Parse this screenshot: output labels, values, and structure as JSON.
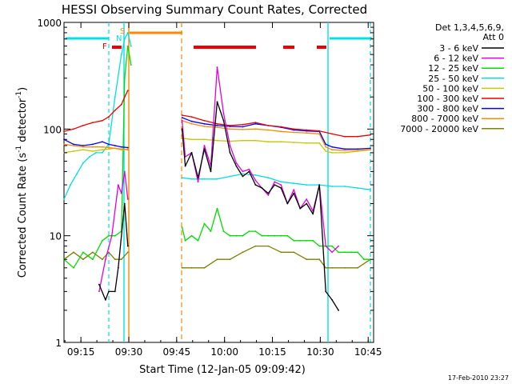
{
  "chart_data": {
    "type": "line",
    "title": "HESSI Observing Summary Count Rates, Corrected",
    "xlabel": "Start Time (12-Jan-05 09:09:42)",
    "ylabel_main": "Corrected Count Rate (s",
    "ylabel_sup1": "-1",
    "ylabel_mid": " detector",
    "ylabel_sup2": "-1",
    "ylabel_end": ")",
    "x_unit": "minutes after 09:09:42",
    "xlim": [
      0,
      97
    ],
    "ylim": [
      1,
      1000
    ],
    "yscale": "log",
    "x_ticks": [
      {
        "label": "09:15",
        "x": 5.3
      },
      {
        "label": "09:30",
        "x": 20.3
      },
      {
        "label": "09:45",
        "x": 35.3
      },
      {
        "label": "10:00",
        "x": 50.3
      },
      {
        "label": "10:15",
        "x": 65.3
      },
      {
        "label": "10:30",
        "x": 80.3
      },
      {
        "label": "10:45",
        "x": 95.3
      }
    ],
    "y_ticks": [
      {
        "label": "1",
        "y": 1
      },
      {
        "label": "10",
        "y": 10
      },
      {
        "label": "100",
        "y": 100
      },
      {
        "label": "1000",
        "y": 1000
      }
    ],
    "legend": {
      "header": [
        "Det 1,3,4,5,6,9,",
        "Att 0"
      ],
      "position": "right"
    },
    "series": [
      {
        "name": "3 - 6 keV",
        "color": "#000000",
        "x": [
          11,
          13,
          14,
          16,
          17,
          19,
          20,
          37,
          38,
          40,
          42,
          44,
          46,
          48,
          50,
          52,
          54,
          56,
          58,
          60,
          62,
          64,
          66,
          68,
          70,
          72,
          74,
          76,
          78,
          80,
          82,
          84,
          86
        ],
        "y": [
          3.5,
          2.5,
          3,
          3,
          5,
          20,
          8,
          100,
          45,
          60,
          35,
          65,
          40,
          180,
          120,
          60,
          45,
          36,
          40,
          30,
          28,
          25,
          30,
          28,
          20,
          25,
          18,
          20,
          16,
          30,
          3,
          2.5,
          2
        ]
      },
      {
        "name": "6 - 12 keV",
        "color": "#e000e0",
        "x": [
          11,
          13,
          15,
          17,
          18,
          19,
          20,
          37,
          38,
          40,
          42,
          44,
          46,
          48,
          50,
          52,
          54,
          56,
          58,
          60,
          62,
          64,
          66,
          68,
          70,
          72,
          74,
          76,
          78,
          80,
          82,
          84,
          86
        ],
        "y": [
          3,
          6,
          10,
          30,
          25,
          40,
          22,
          120,
          55,
          60,
          32,
          70,
          45,
          380,
          140,
          70,
          48,
          40,
          42,
          33,
          28,
          24,
          32,
          30,
          20,
          27,
          18,
          22,
          17,
          30,
          8,
          7,
          8
        ]
      },
      {
        "name": "12 - 25 keV",
        "color": "#00dd00",
        "x": [
          0,
          3,
          6,
          9,
          12,
          14,
          16,
          18,
          19,
          20,
          21,
          37,
          38,
          40,
          42,
          44,
          46,
          48,
          50,
          52,
          54,
          56,
          58,
          60,
          62,
          64,
          66,
          68,
          70,
          72,
          74,
          76,
          78,
          80,
          82,
          84,
          86,
          88,
          90,
          92,
          94,
          96
        ],
        "y": [
          6,
          5,
          7,
          6,
          9,
          10,
          10,
          11,
          300,
          600,
          400,
          12,
          9,
          10,
          9,
          13,
          11,
          18,
          11,
          10,
          10,
          10,
          11,
          11,
          10,
          10,
          10,
          10,
          10,
          9,
          9,
          9,
          9,
          8,
          8,
          8,
          7,
          7,
          7,
          7,
          6,
          6
        ]
      },
      {
        "name": "25 - 50 keV",
        "color": "#00e0e0",
        "x": [
          0,
          2,
          4,
          6,
          8,
          10,
          12,
          14,
          16,
          18,
          19,
          20,
          21,
          37,
          40,
          44,
          48,
          52,
          56,
          60,
          64,
          68,
          72,
          76,
          80,
          84,
          88,
          92,
          96
        ],
        "y": [
          22,
          30,
          38,
          48,
          55,
          60,
          60,
          72,
          200,
          500,
          700,
          800,
          600,
          35,
          34,
          34,
          34,
          36,
          38,
          37,
          35,
          32,
          31,
          30,
          30,
          29,
          29,
          28,
          27
        ]
      },
      {
        "name": "50 - 100 keV",
        "color": "#c8c800",
        "x": [
          0,
          3,
          6,
          9,
          12,
          14,
          16,
          18,
          20,
          37,
          40,
          44,
          48,
          52,
          56,
          60,
          64,
          68,
          72,
          76,
          80,
          82,
          84,
          88,
          92,
          96
        ],
        "y": [
          60,
          62,
          64,
          62,
          64,
          65,
          66,
          64,
          65,
          82,
          80,
          80,
          78,
          77,
          78,
          78,
          76,
          76,
          75,
          74,
          74,
          62,
          60,
          60,
          62,
          64
        ]
      },
      {
        "name": "100 - 300 keV",
        "color": "#ee0000",
        "x": [
          0,
          3,
          6,
          9,
          12,
          14,
          16,
          18,
          19,
          20,
          37,
          40,
          44,
          48,
          52,
          56,
          60,
          64,
          68,
          72,
          76,
          80,
          84,
          88,
          92,
          96
        ],
        "y": [
          95,
          100,
          108,
          115,
          120,
          130,
          150,
          170,
          200,
          230,
          135,
          130,
          120,
          112,
          108,
          110,
          115,
          108,
          105,
          100,
          98,
          96,
          90,
          85,
          85,
          88
        ]
      },
      {
        "name": "300 - 800 keV",
        "color": "#0000ff",
        "x": [
          0,
          3,
          6,
          9,
          12,
          14,
          16,
          18,
          20,
          37,
          40,
          44,
          48,
          52,
          56,
          60,
          64,
          68,
          72,
          76,
          80,
          82,
          84,
          88,
          92,
          96
        ],
        "y": [
          80,
          72,
          70,
          72,
          76,
          72,
          70,
          68,
          67,
          128,
          118,
          112,
          108,
          106,
          105,
          112,
          108,
          104,
          98,
          96,
          95,
          72,
          68,
          65,
          65,
          66
        ]
      },
      {
        "name": "800 - 7000 keV",
        "color": "#ff8800",
        "x": [
          0,
          3,
          6,
          9,
          12,
          14,
          16,
          18,
          20,
          37,
          40,
          44,
          48,
          52,
          56,
          60,
          64,
          68,
          72,
          76,
          80,
          82,
          84,
          88,
          92,
          96
        ],
        "y": [
          72,
          70,
          68,
          68,
          68,
          67,
          66,
          65,
          64,
          120,
          112,
          106,
          104,
          100,
          99,
          100,
          98,
          95,
          93,
          92,
          90,
          68,
          64,
          63,
          63,
          64
        ]
      },
      {
        "name": "7000 - 20000 keV",
        "color": "#808000",
        "x": [
          0,
          3,
          6,
          9,
          12,
          14,
          16,
          18,
          20,
          37,
          40,
          44,
          48,
          52,
          56,
          60,
          64,
          68,
          72,
          76,
          80,
          82,
          84,
          88,
          92,
          96
        ],
        "y": [
          6,
          7,
          6,
          7,
          6,
          7,
          6,
          6,
          7,
          5,
          5,
          5,
          6,
          6,
          7,
          8,
          8,
          7,
          7,
          6,
          6,
          5,
          5,
          5,
          5,
          6
        ]
      }
    ],
    "markers": {
      "flag_labels": [
        {
          "label": "S",
          "color": "#ff8800"
        },
        {
          "label": "N",
          "color": "#00e0e0"
        },
        {
          "label": "F",
          "color": "#ee0000"
        }
      ]
    }
  },
  "footer": {
    "timestamp": "17-Feb-2010 23:27"
  }
}
